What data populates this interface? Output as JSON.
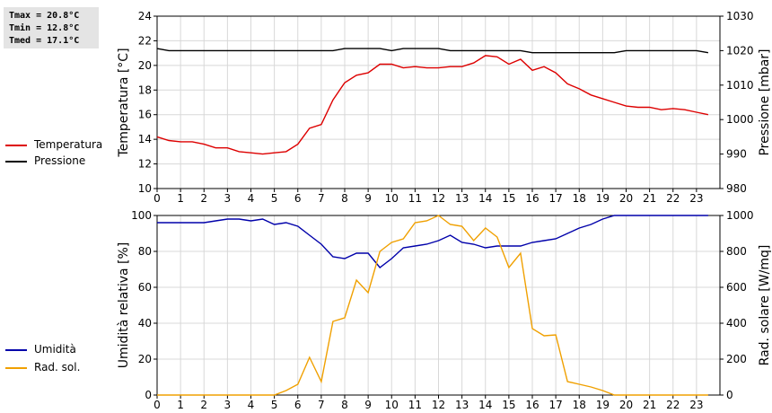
{
  "stats": {
    "tmax": "Tmax = 20.8°C",
    "tmin": "Tmin = 12.8°C",
    "tmed": "Tmed = 17.1°C"
  },
  "legend_top": [
    {
      "label": "Temperatura",
      "color": "#dd0000"
    },
    {
      "label": "Pressione",
      "color": "#000000"
    }
  ],
  "legend_bottom": [
    {
      "label": "Umidità",
      "color": "#0000aa"
    },
    {
      "label": "Rad. sol.",
      "color": "#f0a000"
    }
  ],
  "chart_data": [
    {
      "type": "line",
      "xlabel": "",
      "x_ticks": [
        "0",
        "1",
        "2",
        "3",
        "4",
        "5",
        "6",
        "7",
        "8",
        "9",
        "10",
        "11",
        "12",
        "13",
        "14",
        "15",
        "16",
        "17",
        "18",
        "19",
        "20",
        "21",
        "22",
        "23"
      ],
      "xlim": [
        0,
        24
      ],
      "ylabel_left": "Temperatura [°C]",
      "ylim_left": [
        10,
        24
      ],
      "yticks_left": [
        10,
        12,
        14,
        16,
        18,
        20,
        22,
        24
      ],
      "ylabel_right": "Pressione [mbar]",
      "ylim_right": [
        980,
        1030
      ],
      "yticks_right": [
        980,
        990,
        1000,
        1010,
        1020,
        1030
      ],
      "grid": true,
      "series": [
        {
          "name": "Temperatura",
          "axis": "left",
          "color": "#dd0000",
          "x": [
            0,
            0.5,
            1,
            1.5,
            2,
            2.5,
            3,
            3.5,
            4,
            4.5,
            5,
            5.5,
            6,
            6.5,
            7,
            7.5,
            8,
            8.5,
            9,
            9.5,
            10,
            10.5,
            11,
            11.5,
            12,
            12.5,
            13,
            13.5,
            14,
            14.5,
            15,
            15.5,
            16,
            16.5,
            17,
            17.5,
            18,
            18.5,
            19,
            19.5,
            20,
            20.5,
            21,
            21.5,
            22,
            22.5,
            23,
            23.5
          ],
          "values": [
            14.2,
            13.9,
            13.8,
            13.8,
            13.6,
            13.3,
            13.3,
            13.0,
            12.9,
            12.8,
            12.9,
            13.0,
            13.6,
            14.9,
            15.2,
            17.2,
            18.6,
            19.2,
            19.4,
            20.1,
            20.1,
            19.8,
            19.9,
            19.8,
            19.8,
            19.9,
            19.9,
            20.2,
            20.8,
            20.7,
            20.1,
            20.5,
            19.6,
            19.9,
            19.4,
            18.5,
            18.1,
            17.6,
            17.3,
            17.0,
            16.7,
            16.6,
            16.6,
            16.4,
            16.5,
            16.4,
            16.2,
            16.0
          ]
        },
        {
          "name": "Pressione",
          "axis": "right",
          "color": "#000000",
          "x": [
            0,
            0.5,
            1,
            1.5,
            2,
            2.5,
            3,
            3.5,
            4,
            4.5,
            5,
            5.5,
            6,
            6.5,
            7,
            7.5,
            8,
            8.5,
            9,
            9.5,
            10,
            10.5,
            11,
            11.5,
            12,
            12.5,
            13,
            13.5,
            14,
            14.5,
            15,
            15.5,
            16,
            16.5,
            17,
            17.5,
            18,
            18.5,
            19,
            19.5,
            20,
            20.5,
            21,
            21.5,
            22,
            22.5,
            23,
            23.5
          ],
          "values": [
            1020.6,
            1020,
            1020,
            1020,
            1020,
            1020,
            1020,
            1020,
            1020,
            1020,
            1020,
            1020,
            1020,
            1020,
            1020,
            1020,
            1020.6,
            1020.6,
            1020.6,
            1020.6,
            1020,
            1020.6,
            1020.6,
            1020.6,
            1020.6,
            1020,
            1020,
            1020,
            1020,
            1020,
            1020,
            1020,
            1019.4,
            1019.4,
            1019.4,
            1019.4,
            1019.4,
            1019.4,
            1019.4,
            1019.4,
            1020,
            1020,
            1020,
            1020,
            1020,
            1020,
            1020,
            1019.4
          ]
        }
      ]
    },
    {
      "type": "line",
      "xlabel": "",
      "x_ticks": [
        "0",
        "1",
        "2",
        "3",
        "4",
        "5",
        "6",
        "7",
        "8",
        "9",
        "10",
        "11",
        "12",
        "13",
        "14",
        "15",
        "16",
        "17",
        "18",
        "19",
        "20",
        "21",
        "22",
        "23"
      ],
      "xlim": [
        0,
        24
      ],
      "ylabel_left": "Umidità relativa [%]",
      "ylim_left": [
        0,
        100
      ],
      "yticks_left": [
        0,
        20,
        40,
        60,
        80,
        100
      ],
      "ylabel_right": "Rad. solare [W/mq]",
      "ylim_right": [
        0,
        1000
      ],
      "yticks_right": [
        0,
        200,
        400,
        600,
        800,
        1000
      ],
      "grid": true,
      "series": [
        {
          "name": "Umidità",
          "axis": "left",
          "color": "#0000aa",
          "x": [
            0,
            0.5,
            1,
            1.5,
            2,
            2.5,
            3,
            3.5,
            4,
            4.5,
            5,
            5.5,
            6,
            6.5,
            7,
            7.5,
            8,
            8.5,
            9,
            9.5,
            10,
            10.5,
            11,
            11.5,
            12,
            12.5,
            13,
            13.5,
            14,
            14.5,
            15,
            15.5,
            16,
            16.5,
            17,
            17.5,
            18,
            18.5,
            19,
            19.5,
            20,
            20.5,
            21,
            21.5,
            22,
            22.5,
            23,
            23.5
          ],
          "values": [
            96,
            96,
            96,
            96,
            96,
            97,
            98,
            98,
            97,
            98,
            95,
            96,
            94,
            89,
            84,
            77,
            76,
            79,
            79,
            71,
            76,
            82,
            83,
            84,
            86,
            89,
            85,
            84,
            82,
            83,
            83,
            83,
            85,
            86,
            87,
            90,
            93,
            95,
            98,
            100,
            100,
            100,
            100,
            100,
            100,
            100,
            100,
            100
          ]
        },
        {
          "name": "Rad. sol.",
          "axis": "right",
          "color": "#f0a000",
          "x": [
            0,
            0.5,
            1,
            1.5,
            2,
            2.5,
            3,
            3.5,
            4,
            4.5,
            5,
            5.5,
            6,
            6.5,
            7,
            7.5,
            8,
            8.5,
            9,
            9.5,
            10,
            10.5,
            11,
            11.5,
            12,
            12.5,
            13,
            13.5,
            14,
            14.5,
            15,
            15.5,
            16,
            16.5,
            17,
            17.5,
            18,
            18.5,
            19,
            19.5,
            20,
            20.5,
            21,
            21.5,
            22,
            22.5,
            23,
            23.5
          ],
          "values": [
            0,
            0,
            0,
            0,
            0,
            0,
            0,
            0,
            0,
            0,
            0,
            25,
            60,
            210,
            75,
            410,
            430,
            640,
            570,
            800,
            850,
            870,
            960,
            970,
            1020,
            950,
            940,
            860,
            930,
            880,
            710,
            790,
            370,
            330,
            335,
            75,
            60,
            45,
            25,
            0,
            0,
            0,
            0,
            0,
            0,
            0,
            0,
            0
          ]
        }
      ]
    }
  ]
}
